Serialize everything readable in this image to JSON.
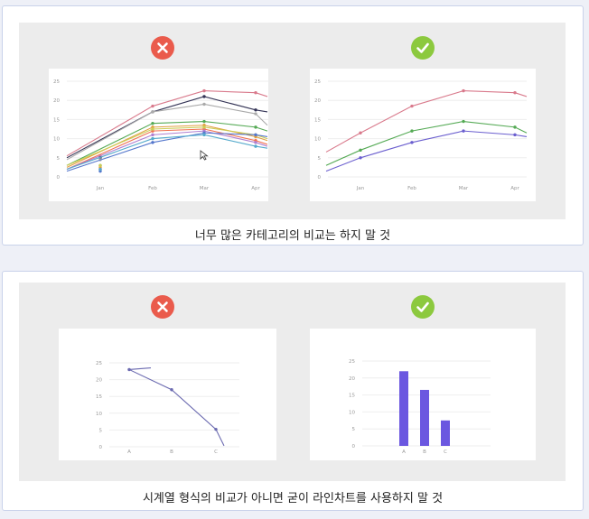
{
  "colors": {
    "bad": "#ea5b4c",
    "good": "#8cc93e",
    "bar": "#6b57e0",
    "grid": "#eeeeee",
    "axis_text": "#999999"
  },
  "icons": {
    "bad": "x-icon",
    "good": "check-icon"
  },
  "sections": [
    {
      "caption": "너무 많은 카테고리의 비교는 하지 말 것"
    },
    {
      "caption": "시계열 형식의 비교가 아니면 굳이 라인차트를 사용하지 말 것"
    }
  ],
  "chart_data": [
    {
      "type": "line",
      "categories": [
        "Jan",
        "Feb",
        "Mar",
        "Apr"
      ],
      "yticks": [
        0,
        5,
        10,
        15,
        20,
        25
      ],
      "ylim": [
        0,
        25
      ],
      "series": [
        {
          "color": "#d97a8c",
          "values": [
            5.5,
            18.5,
            22.5,
            22
          ],
          "end": 21
        },
        {
          "color": "#333355",
          "values": [
            5,
            17,
            21,
            17.5
          ],
          "end": 17
        },
        {
          "color": "#aaaaaa",
          "values": [
            4.5,
            17,
            19,
            16.5
          ],
          "end": 13.5
        },
        {
          "color": "#55aa55",
          "values": [
            3,
            14,
            14.5,
            13
          ],
          "end": 12
        },
        {
          "color": "#e0a040",
          "values": [
            2.5,
            13,
            13.5,
            10.5
          ],
          "end": 9.5
        },
        {
          "color": "#f07050",
          "values": [
            2,
            12,
            12.5,
            9.5
          ],
          "end": 8.5
        },
        {
          "color": "#b07fd0",
          "values": [
            2,
            11,
            12,
            9
          ],
          "end": 8
        },
        {
          "color": "#cccc55",
          "values": [
            3,
            12.5,
            13,
            11
          ],
          "end": 10
        },
        {
          "color": "#5577cc",
          "values": [
            1.5,
            9,
            11.5,
            11
          ],
          "end": 10.5
        },
        {
          "color": "#55aacc",
          "values": [
            2,
            10,
            11,
            8
          ],
          "end": 7.5
        }
      ]
    },
    {
      "type": "line",
      "categories": [
        "Jan",
        "Feb",
        "Mar",
        "Apr"
      ],
      "yticks": [
        0,
        5,
        10,
        15,
        20,
        25
      ],
      "ylim": [
        0,
        25
      ],
      "series": [
        {
          "color": "#d97a8c",
          "values": [
            11.5,
            18.5,
            22.5,
            22
          ],
          "start": 6.5,
          "end": 21
        },
        {
          "color": "#55aa55",
          "values": [
            7,
            12,
            14.5,
            13
          ],
          "start": 3,
          "end": 11.5
        },
        {
          "color": "#6b5fcf",
          "values": [
            5,
            9,
            12,
            11
          ],
          "start": 1.5,
          "end": 10.5
        }
      ]
    },
    {
      "type": "line",
      "categories": [
        "A",
        "B",
        "C"
      ],
      "yticks": [
        0,
        5,
        10,
        15,
        20,
        25
      ],
      "ylim": [
        0,
        25
      ],
      "series": [
        {
          "color": "#6b6ab0",
          "values": [
            23,
            17,
            5.2
          ],
          "start": 23.5,
          "end": 0.3
        }
      ]
    },
    {
      "type": "bar",
      "categories": [
        "A",
        "B",
        "C"
      ],
      "values": [
        22,
        16.5,
        7.5
      ],
      "yticks": [
        0,
        5,
        10,
        15,
        20,
        25
      ],
      "ylim": [
        0,
        25
      ]
    }
  ]
}
